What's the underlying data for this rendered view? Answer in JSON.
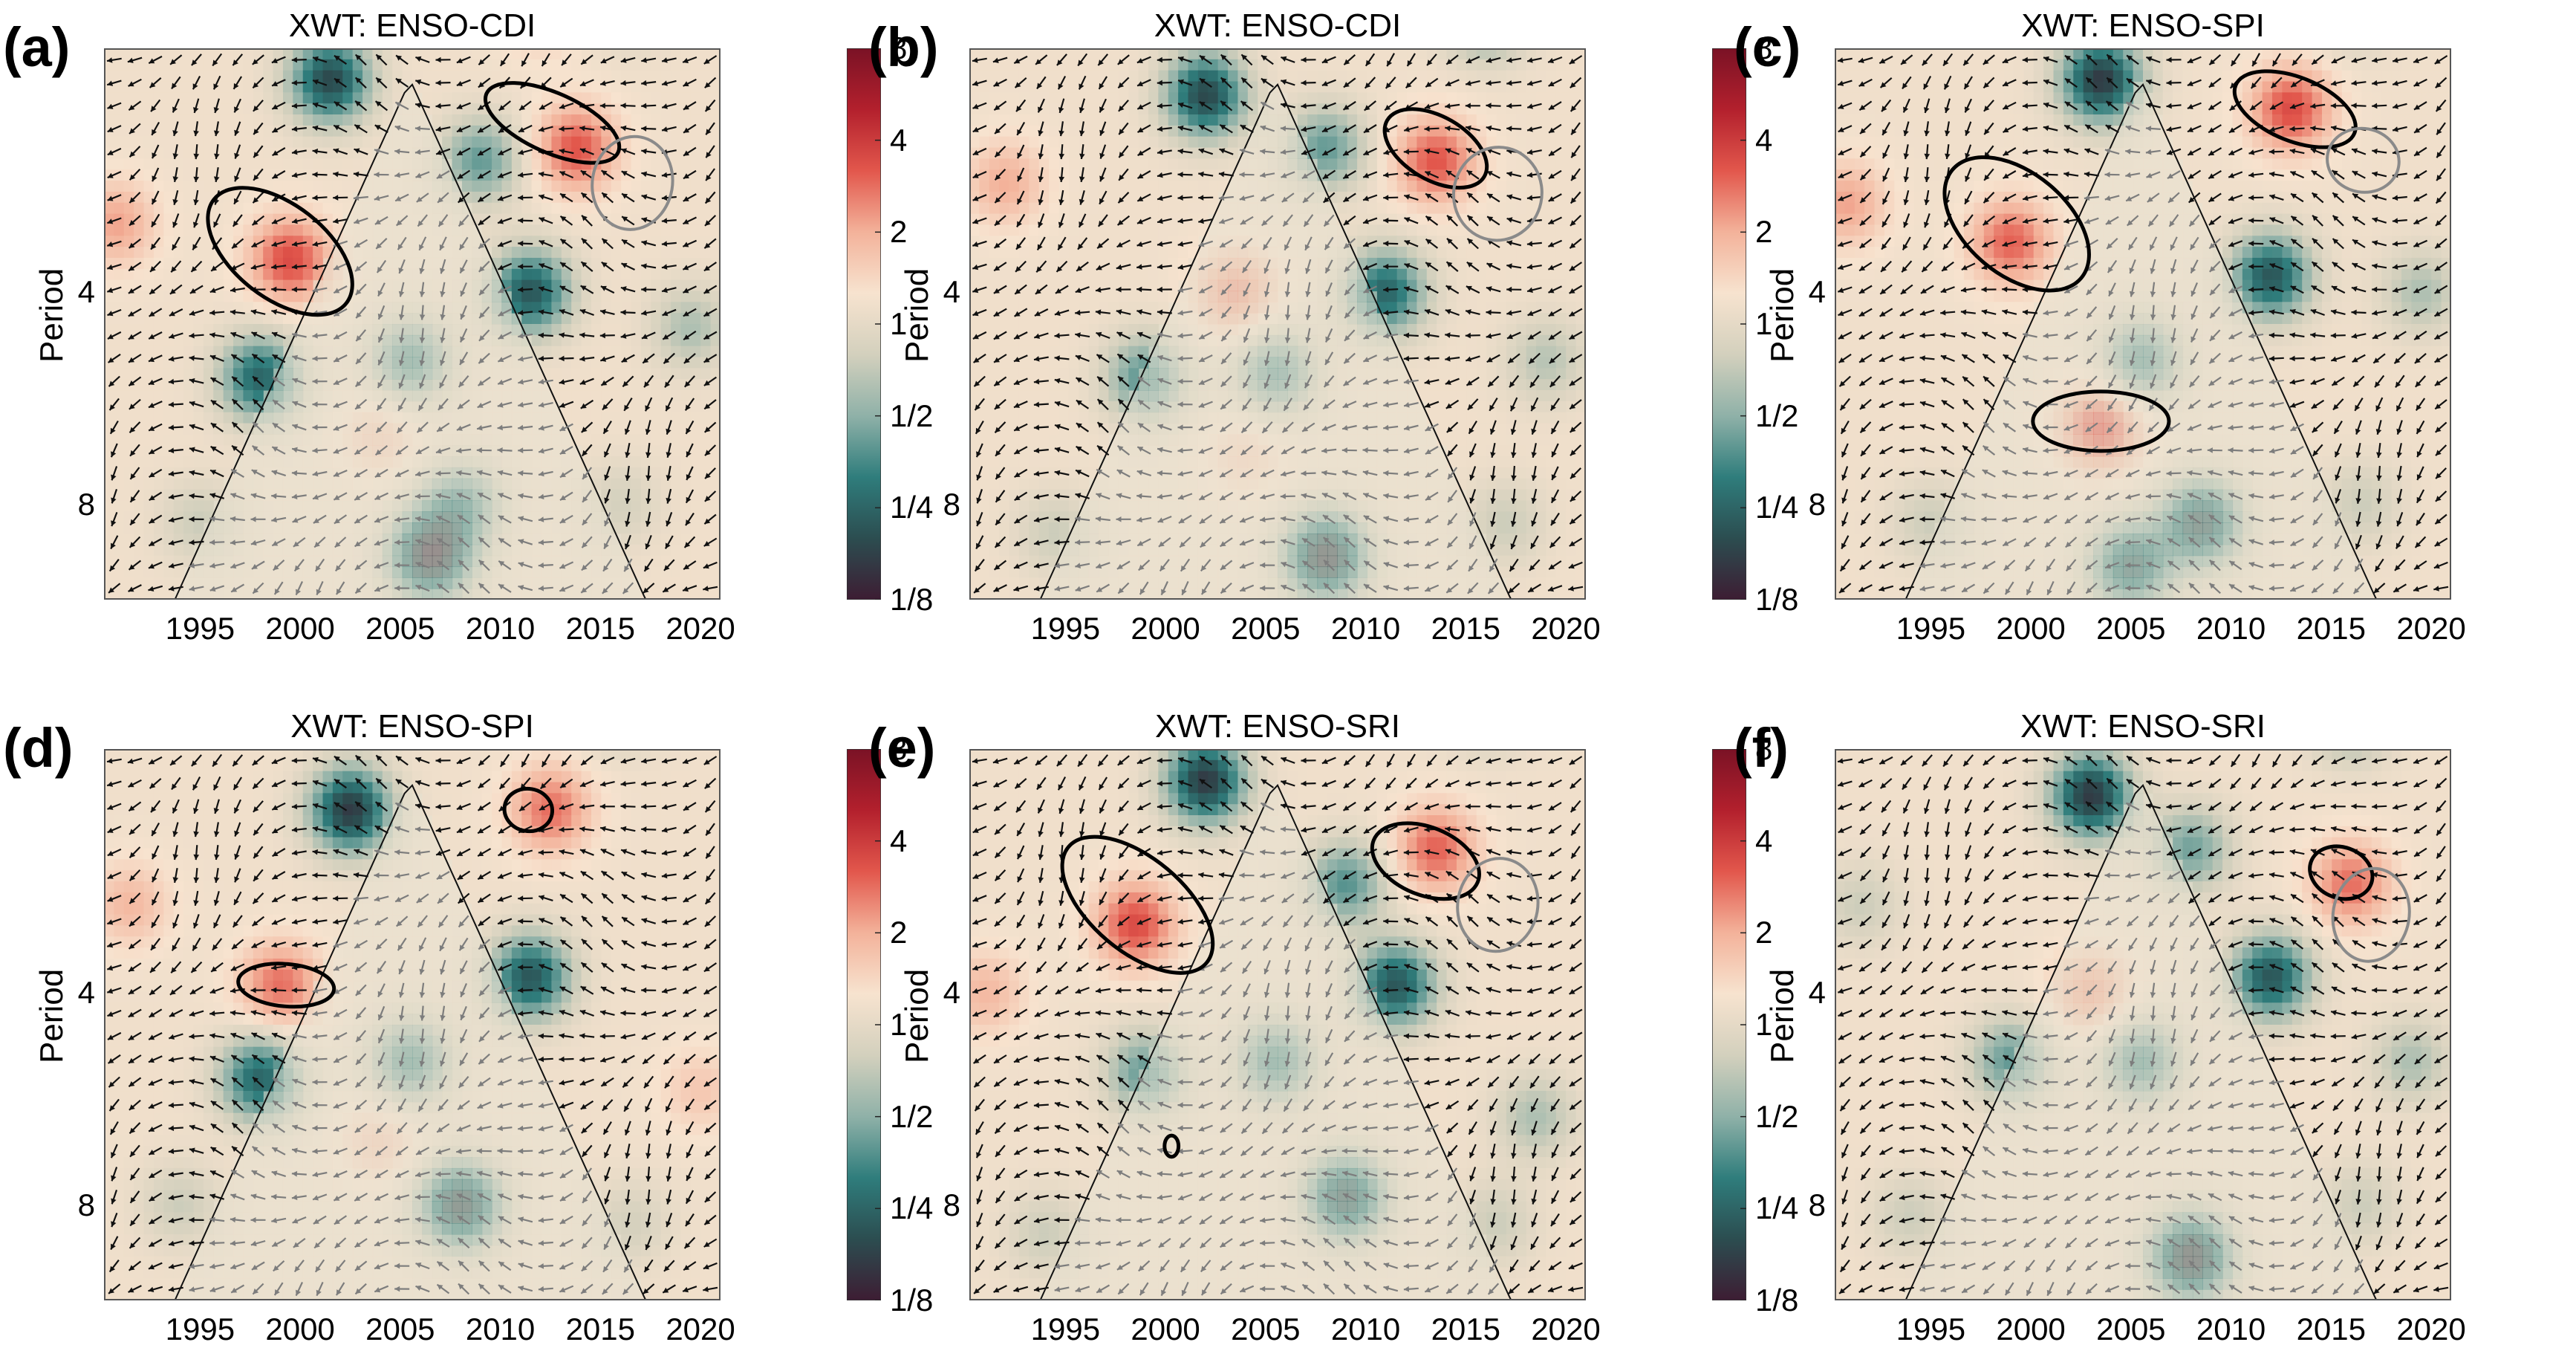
{
  "figure": {
    "colorbar_ticks": [
      "8",
      "4",
      "2",
      "1",
      "1/2",
      "1/4",
      "1/8"
    ],
    "colormap": [
      "#3d1d33",
      "#2c4d50",
      "#2f7d7c",
      "#8fb1a8",
      "#d3d0bd",
      "#f7e3cf",
      "#f3b29a",
      "#e2574c",
      "#b3202d",
      "#7a1225"
    ],
    "ylabel": "Period",
    "yticks": [
      "4",
      "8"
    ],
    "xticks": [
      "1995",
      "2000",
      "2005",
      "2010",
      "2015",
      "2020"
    ]
  },
  "chart_data": [
    {
      "id": "a",
      "tag": "(a)",
      "title": "XWT: ENSO-CDI",
      "type": "heatmap",
      "xlim": [
        1990.2,
        2021.0
      ],
      "ylim_log2_period": [
        0.85,
        3.45
      ],
      "period_axis": "log2, reversed",
      "coi_apex_year": 2005.5,
      "hotspots": [
        {
          "t": 1999.5,
          "p": 3.6,
          "v": 1.6
        },
        {
          "t": 2013.8,
          "p": 2.5,
          "v": 1.5
        },
        {
          "t": 2001.5,
          "p": 2.0,
          "v": -2.6
        },
        {
          "t": 2011.5,
          "p": 4.0,
          "v": -2.4
        },
        {
          "t": 2005.5,
          "p": 5.0,
          "v": -1.6
        },
        {
          "t": 1998.0,
          "p": 5.3,
          "v": -2.2
        },
        {
          "t": 2006.5,
          "p": 9.5,
          "v": -2.8
        },
        {
          "t": 2008.0,
          "p": 8.0,
          "v": -1.5
        },
        {
          "t": 2009.0,
          "p": 2.6,
          "v": -1.5
        },
        {
          "t": 1995.0,
          "p": 8.5,
          "v": -0.6
        },
        {
          "t": 2016.0,
          "p": 8.0,
          "v": -0.5
        },
        {
          "t": 2004.0,
          "p": 6.4,
          "v": 0.5
        },
        {
          "t": 1990.8,
          "p": 3.2,
          "v": 0.9
        },
        {
          "t": 2019.5,
          "p": 4.5,
          "v": -0.9
        },
        {
          "t": 2012.0,
          "p": 1.6,
          "v": 0.6
        },
        {
          "t": 2016.5,
          "p": 1.5,
          "v": -1.2
        }
      ],
      "contours": [
        {
          "t": 1999.0,
          "p": 3.5,
          "rt": 4.2,
          "rp": 0.22,
          "rot": 38,
          "sig": true
        },
        {
          "t": 2012.6,
          "p": 2.3,
          "rt": 3.6,
          "rp": 0.14,
          "rot": 24,
          "sig": true
        },
        {
          "t": 2016.6,
          "p": 2.8,
          "rt": 2.0,
          "rp": 0.22,
          "rot": 10,
          "sig": false
        }
      ]
    },
    {
      "id": "b",
      "tag": "(b)",
      "title": "XWT: ENSO-CDI",
      "type": "heatmap",
      "xlim": [
        1990.2,
        2021.0
      ],
      "ylim_log2_period": [
        0.85,
        3.45
      ],
      "period_axis": "log2, reversed",
      "coi_apex_year": 2005.5,
      "hotspots": [
        {
          "t": 2002.0,
          "p": 2.1,
          "v": -2.6
        },
        {
          "t": 2011.0,
          "p": 4.0,
          "v": -2.2
        },
        {
          "t": 2013.5,
          "p": 2.6,
          "v": 1.5
        },
        {
          "t": 2003.5,
          "p": 4.0,
          "v": 1.0
        },
        {
          "t": 1999.0,
          "p": 5.3,
          "v": -1.6
        },
        {
          "t": 2005.5,
          "p": 5.2,
          "v": -1.5
        },
        {
          "t": 2008.0,
          "p": 9.5,
          "v": -2.8
        },
        {
          "t": 2008.0,
          "p": 2.5,
          "v": -1.5
        },
        {
          "t": 2016.0,
          "p": 1.6,
          "v": -1.8
        },
        {
          "t": 1994.5,
          "p": 8.8,
          "v": -0.6
        },
        {
          "t": 2017.0,
          "p": 8.5,
          "v": -0.6
        },
        {
          "t": 1992.0,
          "p": 2.8,
          "v": 0.8
        },
        {
          "t": 2004.0,
          "p": 6.8,
          "v": 0.4
        },
        {
          "t": 2019.0,
          "p": 5.0,
          "v": -0.8
        }
      ],
      "contours": [
        {
          "t": 2013.5,
          "p": 2.5,
          "rt": 2.8,
          "rp": 0.15,
          "rot": 30,
          "sig": true
        },
        {
          "t": 2016.6,
          "p": 2.9,
          "rt": 2.2,
          "rp": 0.22,
          "rot": 12,
          "sig": false
        }
      ]
    },
    {
      "id": "c",
      "tag": "(c)",
      "title": "XWT: ENSO-SPI",
      "type": "heatmap",
      "xlim": [
        1990.2,
        2021.0
      ],
      "ylim_log2_period": [
        0.85,
        3.45
      ],
      "period_axis": "log2, reversed",
      "coi_apex_year": 2005.5,
      "hotspots": [
        {
          "t": 2003.5,
          "p": 2.0,
          "v": -2.8
        },
        {
          "t": 2012.0,
          "p": 3.8,
          "v": -2.4
        },
        {
          "t": 2013.0,
          "p": 2.2,
          "v": 1.6
        },
        {
          "t": 1999.0,
          "p": 3.4,
          "v": 1.4
        },
        {
          "t": 2003.5,
          "p": 6.2,
          "v": 1.5
        },
        {
          "t": 2005.5,
          "p": 5.0,
          "v": -1.6
        },
        {
          "t": 2008.5,
          "p": 8.5,
          "v": -2.4
        },
        {
          "t": 2005.0,
          "p": 9.8,
          "v": -2.2
        },
        {
          "t": 2016.0,
          "p": 1.5,
          "v": -1.8
        },
        {
          "t": 1995.0,
          "p": 8.5,
          "v": -0.6
        },
        {
          "t": 2016.5,
          "p": 8.0,
          "v": -0.6
        },
        {
          "t": 1990.8,
          "p": 3.0,
          "v": 0.9
        },
        {
          "t": 2019.5,
          "p": 4.0,
          "v": -0.9
        }
      ],
      "contours": [
        {
          "t": 1999.3,
          "p": 3.2,
          "rt": 4.2,
          "rp": 0.24,
          "rot": 40,
          "sig": true
        },
        {
          "t": 2003.5,
          "p": 6.1,
          "rt": 3.4,
          "rp": 0.14,
          "rot": 0,
          "sig": true
        },
        {
          "t": 2013.2,
          "p": 2.2,
          "rt": 3.2,
          "rp": 0.15,
          "rot": 22,
          "sig": true
        },
        {
          "t": 2016.6,
          "p": 2.6,
          "rt": 1.8,
          "rp": 0.15,
          "rot": 10,
          "sig": false
        }
      ]
    },
    {
      "id": "d",
      "tag": "(d)",
      "title": "XWT: ENSO-SPI",
      "type": "heatmap",
      "xlim": [
        1990.2,
        2021.0
      ],
      "ylim_log2_period": [
        0.85,
        3.45
      ],
      "period_axis": "log2, reversed",
      "coi_apex_year": 2005.5,
      "hotspots": [
        {
          "t": 2002.5,
          "p": 2.2,
          "v": -2.8
        },
        {
          "t": 2011.5,
          "p": 3.8,
          "v": -2.4
        },
        {
          "t": 2012.5,
          "p": 2.2,
          "v": 1.3
        },
        {
          "t": 1999.0,
          "p": 3.9,
          "v": 1.3
        },
        {
          "t": 2005.5,
          "p": 5.0,
          "v": -1.6
        },
        {
          "t": 1998.0,
          "p": 5.3,
          "v": -2.2
        },
        {
          "t": 2008.0,
          "p": 8.0,
          "v": -2.6
        },
        {
          "t": 2016.0,
          "p": 1.5,
          "v": -1.6
        },
        {
          "t": 1994.0,
          "p": 8.0,
          "v": -0.6
        },
        {
          "t": 2016.5,
          "p": 8.5,
          "v": -0.5
        },
        {
          "t": 2004.0,
          "p": 6.5,
          "v": 0.5
        },
        {
          "t": 1991.5,
          "p": 3.0,
          "v": 0.7
        },
        {
          "t": 2020.0,
          "p": 5.5,
          "v": 0.5
        }
      ],
      "contours": [
        {
          "t": 1999.3,
          "p": 3.9,
          "rt": 2.4,
          "rp": 0.1,
          "rot": 5,
          "sig": true
        },
        {
          "t": 2011.4,
          "p": 2.2,
          "rt": 1.2,
          "rp": 0.1,
          "rot": 10,
          "sig": true
        }
      ]
    },
    {
      "id": "e",
      "tag": "(e)",
      "title": "XWT: ENSO-SRI",
      "type": "heatmap",
      "xlim": [
        1990.2,
        2021.0
      ],
      "ylim_log2_period": [
        0.85,
        3.45
      ],
      "period_axis": "log2, reversed",
      "coi_apex_year": 2005.5,
      "hotspots": [
        {
          "t": 2002.0,
          "p": 2.0,
          "v": -2.8
        },
        {
          "t": 2011.5,
          "p": 3.9,
          "v": -2.4
        },
        {
          "t": 1998.5,
          "p": 3.2,
          "v": 1.6
        },
        {
          "t": 2013.5,
          "p": 2.5,
          "v": 1.4
        },
        {
          "t": 2005.5,
          "p": 5.0,
          "v": -1.6
        },
        {
          "t": 1999.0,
          "p": 5.2,
          "v": -1.5
        },
        {
          "t": 2009.0,
          "p": 7.8,
          "v": -2.4
        },
        {
          "t": 2009.0,
          "p": 2.8,
          "v": -1.6
        },
        {
          "t": 2016.0,
          "p": 1.5,
          "v": -1.8
        },
        {
          "t": 1994.0,
          "p": 8.8,
          "v": -0.6
        },
        {
          "t": 2016.5,
          "p": 8.5,
          "v": -0.6
        },
        {
          "t": 1991.0,
          "p": 4.0,
          "v": 0.7
        },
        {
          "t": 2018.5,
          "p": 6.0,
          "v": -0.9
        }
      ],
      "contours": [
        {
          "t": 1998.6,
          "p": 3.0,
          "rt": 4.5,
          "rp": 0.22,
          "rot": 40,
          "sig": true
        },
        {
          "t": 2013.0,
          "p": 2.6,
          "rt": 2.8,
          "rp": 0.16,
          "rot": 22,
          "sig": true
        },
        {
          "t": 2016.6,
          "p": 3.0,
          "rt": 2.0,
          "rp": 0.22,
          "rot": 10,
          "sig": false
        },
        {
          "t": 2000.3,
          "p": 6.6,
          "rt": 0.35,
          "rp": 0.05,
          "rot": 0,
          "sig": true
        }
      ]
    },
    {
      "id": "f",
      "tag": "(f)",
      "title": "XWT: ENSO-SRI",
      "type": "heatmap",
      "xlim": [
        1990.2,
        2021.0
      ],
      "ylim_log2_period": [
        0.85,
        3.45
      ],
      "period_axis": "log2, reversed",
      "coi_apex_year": 2005.5,
      "hotspots": [
        {
          "t": 2003.0,
          "p": 2.1,
          "v": -2.8
        },
        {
          "t": 2012.0,
          "p": 3.8,
          "v": -2.4
        },
        {
          "t": 2005.5,
          "p": 5.0,
          "v": -1.6
        },
        {
          "t": 1999.0,
          "p": 5.0,
          "v": -1.5
        },
        {
          "t": 2008.0,
          "p": 9.5,
          "v": -2.8
        },
        {
          "t": 2008.0,
          "p": 2.5,
          "v": -1.4
        },
        {
          "t": 2016.0,
          "p": 2.8,
          "v": 1.3
        },
        {
          "t": 2016.0,
          "p": 1.6,
          "v": -1.6
        },
        {
          "t": 2003.0,
          "p": 4.0,
          "v": 0.9
        },
        {
          "t": 1994.0,
          "p": 8.3,
          "v": -0.6
        },
        {
          "t": 2016.5,
          "p": 8.0,
          "v": -0.6
        },
        {
          "t": 1991.5,
          "p": 3.0,
          "v": -0.6
        },
        {
          "t": 2019.0,
          "p": 5.0,
          "v": -0.9
        }
      ],
      "contours": [
        {
          "t": 2015.5,
          "p": 2.7,
          "rt": 1.6,
          "rp": 0.12,
          "rot": 20,
          "sig": true
        },
        {
          "t": 2017.0,
          "p": 3.1,
          "rt": 1.9,
          "rp": 0.22,
          "rot": 10,
          "sig": false
        }
      ]
    }
  ]
}
